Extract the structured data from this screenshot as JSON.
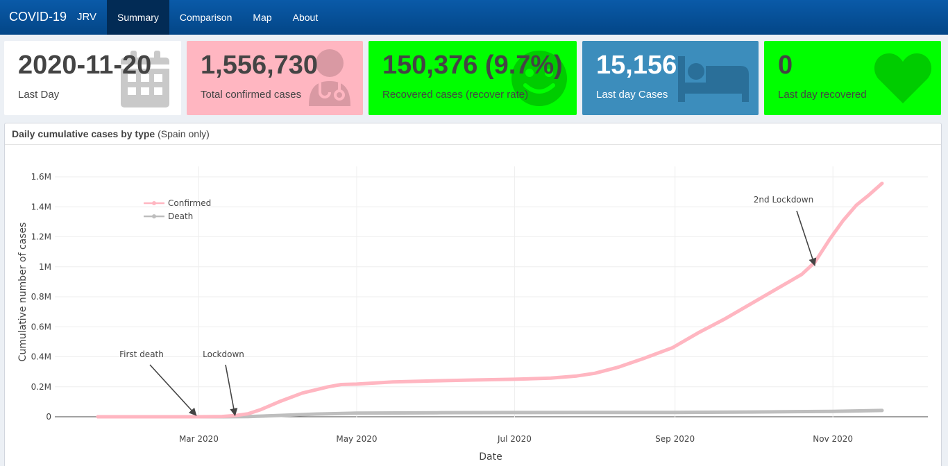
{
  "navbar": {
    "brand": "COVID-19",
    "brand_sub": "JRV",
    "items": [
      {
        "label": "Summary",
        "active": true
      },
      {
        "label": "Comparison",
        "active": false
      },
      {
        "label": "Map",
        "active": false
      },
      {
        "label": "About",
        "active": false
      }
    ]
  },
  "value_boxes": [
    {
      "value": "2020-11-20",
      "label": "Last Day",
      "icon": "calendar-icon",
      "bg": "#ffffff",
      "color": "#444444"
    },
    {
      "value": "1,556,730",
      "label": "Total confirmed cases",
      "icon": "user-doctor-icon",
      "bg": "#ffb6c1",
      "color": "#444444"
    },
    {
      "value": "150,376 (9.7%)",
      "label": "Recovered cases (recover rate)",
      "icon": "smile-icon",
      "bg": "#00ff00",
      "color": "#444444"
    },
    {
      "value": "15,156",
      "label": "Last day Cases",
      "icon": "bed-icon",
      "bg": "#3c8dbc",
      "color": "#ffffff"
    },
    {
      "value": "0",
      "label": "Last day recovered",
      "icon": "heart-icon",
      "bg": "#00ff00",
      "color": "#444444"
    }
  ],
  "chart_card": {
    "title": "Daily cumulative cases by type",
    "subtitle": "(Spain only)"
  },
  "chart_data": {
    "type": "line",
    "xlabel": "Date",
    "ylabel": "Cumulative number of cases",
    "x_ticks": [
      "Mar 2020",
      "May 2020",
      "Jul 2020",
      "Sep 2020",
      "Nov 2020"
    ],
    "y_ticks": [
      "0",
      "0.2M",
      "0.4M",
      "0.6M",
      "0.8M",
      "1M",
      "1.2M",
      "1.4M",
      "1.6M"
    ],
    "ylim": [
      0,
      1600000
    ],
    "grid": true,
    "legend_position": "top-left",
    "series": [
      {
        "name": "Confirmed",
        "color": "#ffb6c1",
        "x": [
          "2020-01-22",
          "2020-02-15",
          "2020-02-29",
          "2020-03-10",
          "2020-03-15",
          "2020-03-20",
          "2020-03-25",
          "2020-04-01",
          "2020-04-10",
          "2020-04-20",
          "2020-04-25",
          "2020-05-01",
          "2020-05-15",
          "2020-06-01",
          "2020-06-15",
          "2020-07-01",
          "2020-07-15",
          "2020-07-25",
          "2020-08-01",
          "2020-08-10",
          "2020-08-20",
          "2020-08-31",
          "2020-09-10",
          "2020-09-20",
          "2020-10-01",
          "2020-10-10",
          "2020-10-20",
          "2020-10-25",
          "2020-10-31",
          "2020-11-05",
          "2020-11-10",
          "2020-11-15",
          "2020-11-20"
        ],
        "y": [
          0,
          0,
          0,
          2000,
          8000,
          20000,
          48000,
          100000,
          158000,
          200000,
          215000,
          218000,
          232000,
          240000,
          245000,
          250000,
          258000,
          272000,
          290000,
          330000,
          390000,
          460000,
          560000,
          650000,
          760000,
          850000,
          950000,
          1030000,
          1190000,
          1310000,
          1410000,
          1480000,
          1556730
        ]
      },
      {
        "name": "Death",
        "color": "#bebebe",
        "x": [
          "2020-01-22",
          "2020-02-29",
          "2020-03-10",
          "2020-03-20",
          "2020-04-01",
          "2020-04-15",
          "2020-05-01",
          "2020-06-01",
          "2020-07-01",
          "2020-08-01",
          "2020-09-01",
          "2020-10-01",
          "2020-11-01",
          "2020-11-20"
        ],
        "y": [
          0,
          0,
          10,
          1000,
          9000,
          18000,
          24000,
          27000,
          28000,
          28500,
          29000,
          32000,
          36000,
          42000
        ]
      }
    ],
    "annotations": [
      {
        "text": "First death",
        "x": "2020-02-29",
        "y": 0
      },
      {
        "text": "Lockdown",
        "x": "2020-03-15",
        "y": 0
      },
      {
        "text": "2nd Lockdown",
        "x": "2020-10-25",
        "y": 1000000
      }
    ]
  }
}
